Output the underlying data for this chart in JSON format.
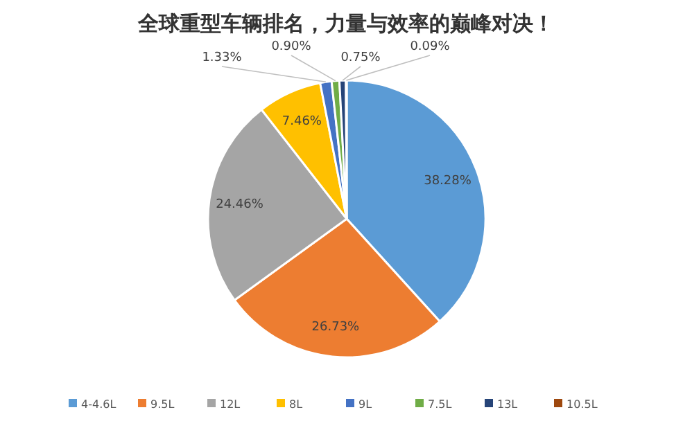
{
  "chart_data": {
    "type": "pie",
    "title": "全球重型车辆排名，力量与效率的巅峰对决！",
    "categories": [
      "4-4.6L",
      "9.5L",
      "12L",
      "8L",
      "9L",
      "7.5L",
      "13L",
      "10.5L"
    ],
    "values": [
      38.28,
      26.73,
      24.46,
      7.46,
      1.33,
      0.9,
      0.75,
      0.09
    ],
    "value_labels": [
      "38.28%",
      "26.73%",
      "24.46%",
      "7.46%",
      "1.33%",
      "0.90%",
      "0.75%",
      "0.09%"
    ],
    "colors": [
      "#5b9bd5",
      "#ed7d31",
      "#a5a5a5",
      "#ffc000",
      "#4472c4",
      "#70ad47",
      "#264478",
      "#9e480e"
    ],
    "legend": "bottom"
  }
}
